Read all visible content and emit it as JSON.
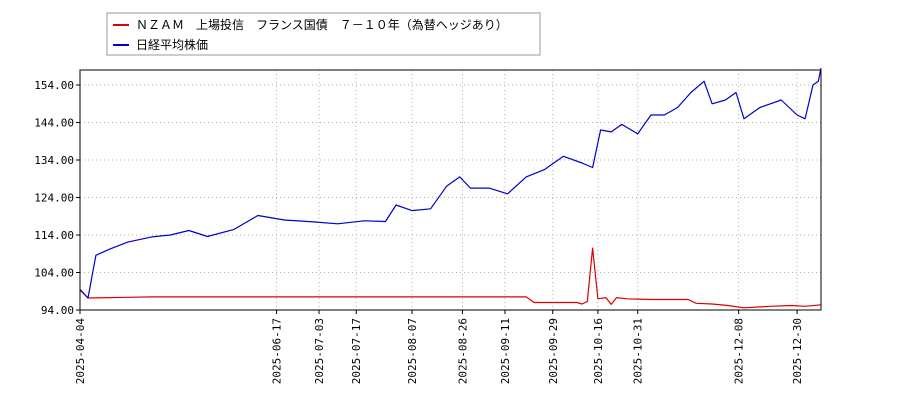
{
  "chart_data": {
    "type": "line",
    "title": "",
    "xlabel": "",
    "ylabel": "",
    "ylim": [
      94,
      158
    ],
    "yticks": [
      94,
      104,
      114,
      124,
      134,
      144,
      154
    ],
    "ytick_labels": [
      "94.00",
      "104.00",
      "114.00",
      "124.00",
      "134.00",
      "144.00",
      "154.00"
    ],
    "xlim": [
      "2025-04-04",
      "2026-01-08"
    ],
    "xticks": [
      "2025-04-04",
      "2025-06-17",
      "2025-07-03",
      "2025-07-17",
      "2025-08-07",
      "2025-08-26",
      "2025-09-11",
      "2025-09-29",
      "2025-10-16",
      "2025-10-31",
      "2025-12-08",
      "2025-12-30"
    ],
    "grid": true,
    "legend_position": "top-left",
    "series": [
      {
        "name": "ＮＺＡＭ　上場投信　フランス国債　７－１０年（為替ヘッジあり）",
        "color": "#dd0000",
        "points": [
          [
            "2025-04-04",
            99.3
          ],
          [
            "2025-04-07",
            97.2
          ],
          [
            "2025-04-15",
            97.3
          ],
          [
            "2025-05-01",
            97.5
          ],
          [
            "2025-06-01",
            97.5
          ],
          [
            "2025-07-01",
            97.5
          ],
          [
            "2025-08-01",
            97.5
          ],
          [
            "2025-09-01",
            97.5
          ],
          [
            "2025-09-19",
            97.5
          ],
          [
            "2025-09-22",
            96.0
          ],
          [
            "2025-10-01",
            96.0
          ],
          [
            "2025-10-08",
            96.0
          ],
          [
            "2025-10-10",
            95.6
          ],
          [
            "2025-10-12",
            96.3
          ],
          [
            "2025-10-14",
            110.5
          ],
          [
            "2025-10-16",
            97.0
          ],
          [
            "2025-10-19",
            97.3
          ],
          [
            "2025-10-21",
            95.5
          ],
          [
            "2025-10-23",
            97.3
          ],
          [
            "2025-10-27",
            97.0
          ],
          [
            "2025-11-05",
            96.8
          ],
          [
            "2025-11-19",
            96.8
          ],
          [
            "2025-11-22",
            95.8
          ],
          [
            "2025-11-28",
            95.6
          ],
          [
            "2025-12-04",
            95.2
          ],
          [
            "2025-12-10",
            94.6
          ],
          [
            "2025-12-20",
            95.0
          ],
          [
            "2025-12-28",
            95.2
          ],
          [
            "2026-01-02",
            95.0
          ],
          [
            "2026-01-08",
            95.4
          ]
        ]
      },
      {
        "name": "日経平均株価",
        "color": "#0000cc",
        "points": [
          [
            "2025-04-04",
            99.5
          ],
          [
            "2025-04-07",
            97.2
          ],
          [
            "2025-04-10",
            108.6
          ],
          [
            "2025-04-15",
            110.2
          ],
          [
            "2025-04-22",
            112.1
          ],
          [
            "2025-05-01",
            113.5
          ],
          [
            "2025-05-08",
            114.0
          ],
          [
            "2025-05-15",
            115.2
          ],
          [
            "2025-05-22",
            113.6
          ],
          [
            "2025-06-01",
            115.5
          ],
          [
            "2025-06-10",
            119.2
          ],
          [
            "2025-06-20",
            118.0
          ],
          [
            "2025-07-01",
            117.5
          ],
          [
            "2025-07-10",
            117.0
          ],
          [
            "2025-07-20",
            117.8
          ],
          [
            "2025-07-28",
            117.6
          ],
          [
            "2025-08-01",
            122.0
          ],
          [
            "2025-08-07",
            120.5
          ],
          [
            "2025-08-14",
            121.0
          ],
          [
            "2025-08-20",
            127.0
          ],
          [
            "2025-08-25",
            129.5
          ],
          [
            "2025-08-29",
            126.5
          ],
          [
            "2025-09-05",
            126.5
          ],
          [
            "2025-09-12",
            125.0
          ],
          [
            "2025-09-19",
            129.5
          ],
          [
            "2025-09-26",
            131.5
          ],
          [
            "2025-10-03",
            135.0
          ],
          [
            "2025-10-10",
            133.2
          ],
          [
            "2025-10-14",
            132.0
          ],
          [
            "2025-10-17",
            142.0
          ],
          [
            "2025-10-21",
            141.5
          ],
          [
            "2025-10-25",
            143.5
          ],
          [
            "2025-10-31",
            141.0
          ],
          [
            "2025-11-05",
            146.0
          ],
          [
            "2025-11-10",
            146.0
          ],
          [
            "2025-11-15",
            148.0
          ],
          [
            "2025-11-20",
            152.0
          ],
          [
            "2025-11-25",
            155.0
          ],
          [
            "2025-11-28",
            149.0
          ],
          [
            "2025-12-03",
            150.0
          ],
          [
            "2025-12-07",
            152.0
          ],
          [
            "2025-12-10",
            145.0
          ],
          [
            "2025-12-16",
            148.0
          ],
          [
            "2025-12-24",
            150.0
          ],
          [
            "2025-12-30",
            146.0
          ],
          [
            "2026-01-02",
            145.0
          ],
          [
            "2026-01-05",
            154.0
          ],
          [
            "2026-01-07",
            155.0
          ],
          [
            "2026-01-08",
            158.5
          ]
        ]
      }
    ]
  }
}
